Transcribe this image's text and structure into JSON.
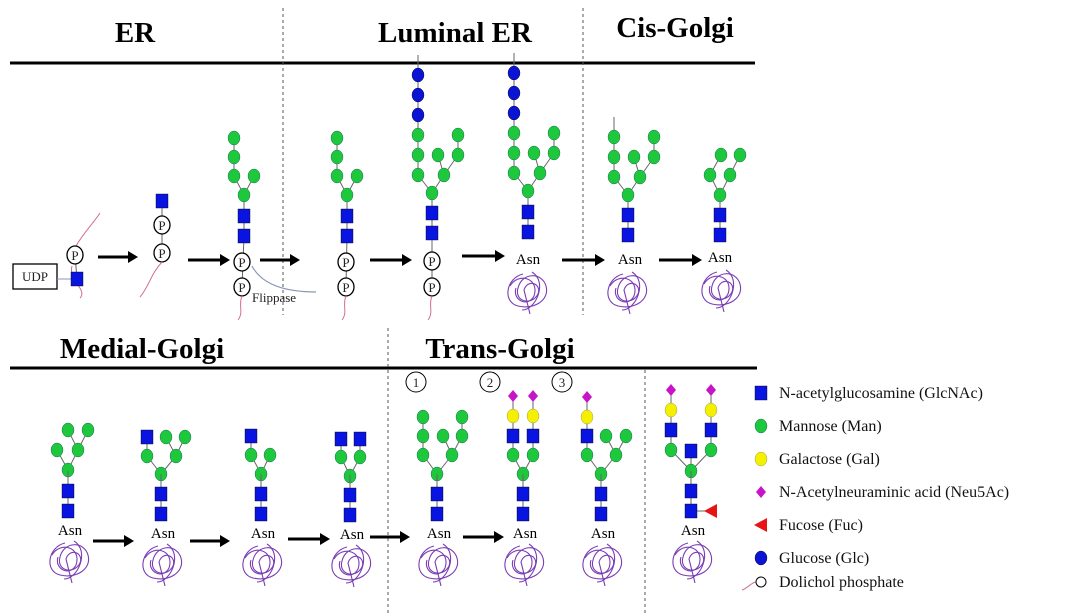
{
  "sections": {
    "er": "ER",
    "luminal_er": "Luminal ER",
    "cis_golgi": "Cis-Golgi",
    "medial_golgi": "Medial-Golgi",
    "trans_golgi": "Trans-Golgi"
  },
  "labels": {
    "udp": "UDP",
    "flippase": "Flippase",
    "asn": "Asn",
    "phosphate": "P",
    "step_1": "1",
    "step_2": "2",
    "step_3": "3"
  },
  "legend": [
    {
      "icon": "blue-square",
      "label": "N-acetylglucosamine (GlcNAc)"
    },
    {
      "icon": "green-circle",
      "label": "Mannose (Man)"
    },
    {
      "icon": "yellow-circle",
      "label": "Galactose (Gal)"
    },
    {
      "icon": "magenta-diamond",
      "label": "N-Acetylneuraminic acid (Neu5Ac)"
    },
    {
      "icon": "red-triangle",
      "label": "Fucose (Fuc)"
    },
    {
      "icon": "blue-circle",
      "label": "Glucose (Glc)"
    },
    {
      "icon": "dolichol-phosphate",
      "label": "Dolichol phosphate"
    }
  ],
  "colors": {
    "glcnac": "#0a14e0",
    "mannose": "#1ec83c",
    "galactose": "#f5f000",
    "neu5ac": "#c814c8",
    "fucose": "#e61414",
    "glucose": "#0a14d2",
    "dolichol": "#d0708a",
    "protein": "#7a3cb4",
    "flippase": "#8898b8"
  }
}
